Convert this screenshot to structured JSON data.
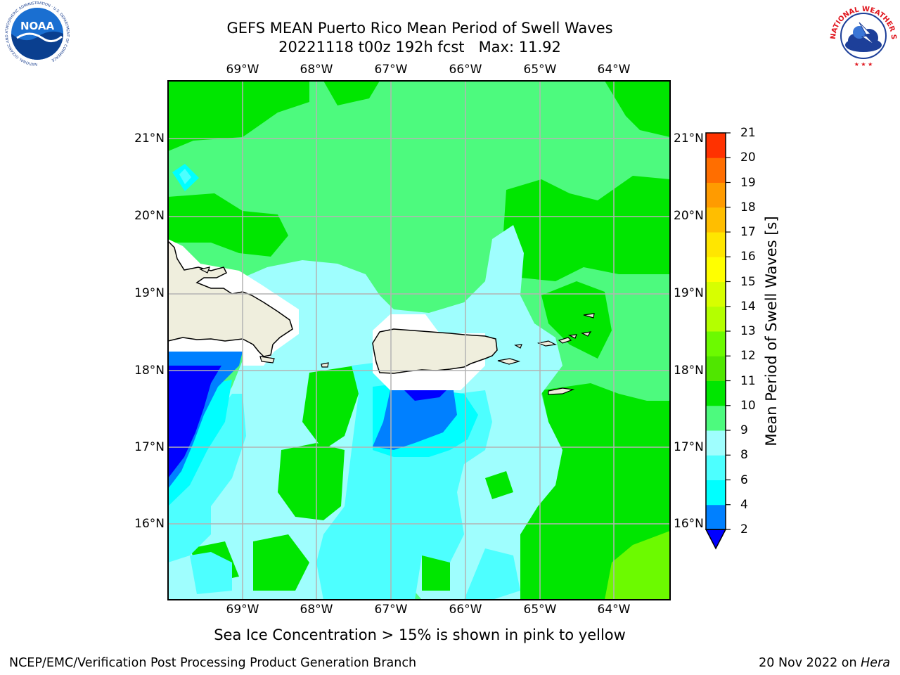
{
  "header": {
    "title_line1": "GEFS MEAN Puerto Rico Mean Period of Swell Waves",
    "title_line2": "20221118 t00z 192h fcst   Max: 11.92"
  },
  "logos": {
    "left": {
      "icon": "noaa-logo",
      "text": "NOAA",
      "ring_text": "NATIONAL OCEANIC AND ATMOSPHERIC ADMINISTRATION · U.S. DEPARTMENT OF COMMERCE"
    },
    "right": {
      "icon": "nws-logo",
      "ring_text": "NATIONAL WEATHER SERVICE"
    }
  },
  "map": {
    "lon_labels": [
      "69°W",
      "68°W",
      "67°W",
      "66°W",
      "65°W",
      "64°W"
    ],
    "lat_labels": [
      "21°N",
      "20°N",
      "19°N",
      "18°N",
      "17°N",
      "16°N"
    ],
    "colors": {
      "deep_blue": "#0000ff",
      "blue": "#0080ff",
      "cyan": "#00ffff",
      "aqua": "#4dffff",
      "pale_cyan": "#9ffefe",
      "light_green": "#4dfa7e",
      "green": "#00e600",
      "yellow_green": "#6cfa00",
      "land": "#efeedd",
      "grid": "#b4b4b4"
    }
  },
  "colorbar": {
    "title": "Mean Period of Swell Waves [s]",
    "ticks": [
      "2",
      "4",
      "6",
      "8",
      "9",
      "10",
      "11",
      "12",
      "13",
      "14",
      "15",
      "16",
      "17",
      "18",
      "19",
      "20",
      "21"
    ],
    "colors": [
      "#0080ff",
      "#00ffff",
      "#4dffff",
      "#9ffefe",
      "#4dfa7e",
      "#00e600",
      "#50e600",
      "#6cfa00",
      "#b4ff00",
      "#d7ff00",
      "#ffff00",
      "#ffe600",
      "#ffbe00",
      "#ff9b00",
      "#ff6e00",
      "#ff3200",
      "#ff0000"
    ],
    "extend_color": "#0000ff"
  },
  "footer": {
    "note": "Sea Ice Concentration > 15% is shown in pink to yellow",
    "left": "NCEP/EMC/Verification Post Processing Product Generation Branch",
    "right_date": "20 Nov 2022 on ",
    "right_host": "Hera"
  }
}
